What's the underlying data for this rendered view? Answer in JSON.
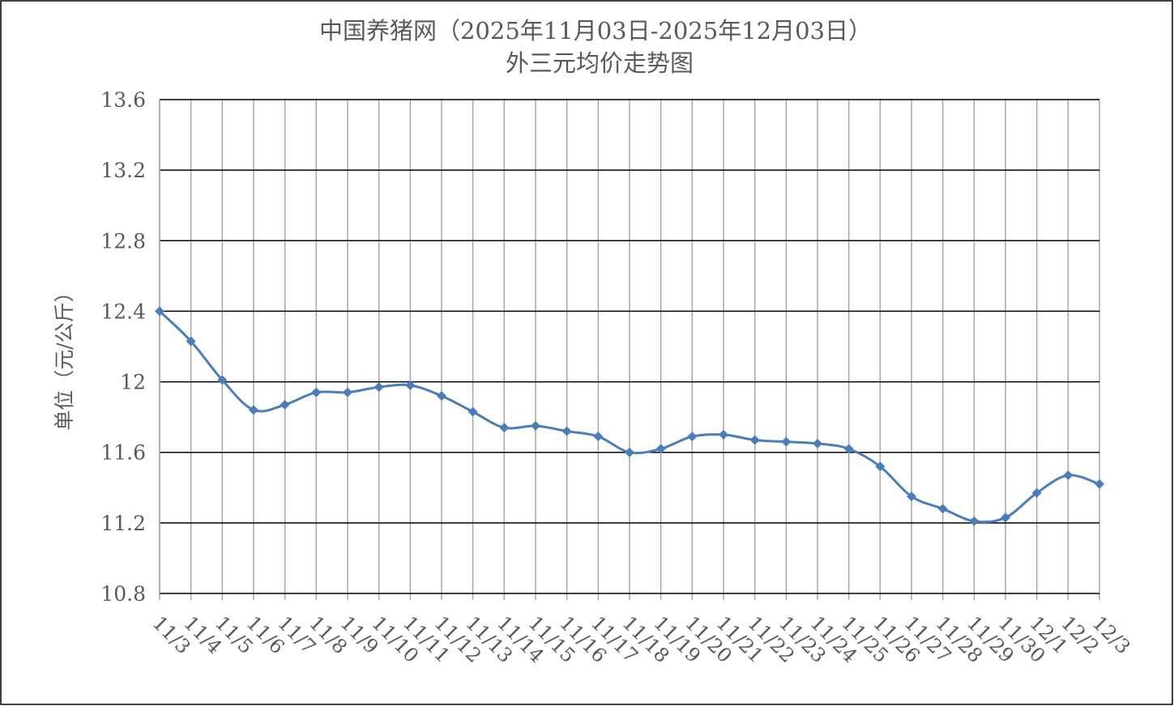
{
  "chart_data": {
    "type": "line",
    "title": "中国养猪网（2025年11月03日-2025年12月03日）",
    "subtitle": "外三元均价走势图",
    "y_label": "单位（元/公斤）",
    "categories": [
      "11/3",
      "11/4",
      "11/5",
      "11/6",
      "11/7",
      "11/8",
      "11/9",
      "11/10",
      "11/11",
      "11/12",
      "11/13",
      "11/14",
      "11/15",
      "11/16",
      "11/17",
      "11/18",
      "11/19",
      "11/20",
      "11/21",
      "11/22",
      "11/23",
      "11/24",
      "11/25",
      "11/26",
      "11/27",
      "11/28",
      "11/29",
      "11/30",
      "12/1",
      "12/2",
      "12/3"
    ],
    "series": [
      {
        "color": "#4a7ebb",
        "values": [
          12.4,
          12.23,
          12.01,
          11.84,
          11.87,
          11.94,
          11.94,
          11.97,
          11.98,
          11.92,
          11.83,
          11.74,
          11.75,
          11.72,
          11.69,
          11.6,
          11.62,
          11.69,
          11.7,
          11.67,
          11.66,
          11.65,
          11.62,
          11.52,
          11.35,
          11.28,
          11.21,
          11.23,
          11.37,
          11.47,
          11.42
        ]
      }
    ],
    "ylim": [
      10.8,
      13.6
    ],
    "yticks": [
      10.8,
      11.2,
      11.6,
      12,
      12.4,
      12.8,
      13.2,
      13.6
    ],
    "grid": true
  }
}
